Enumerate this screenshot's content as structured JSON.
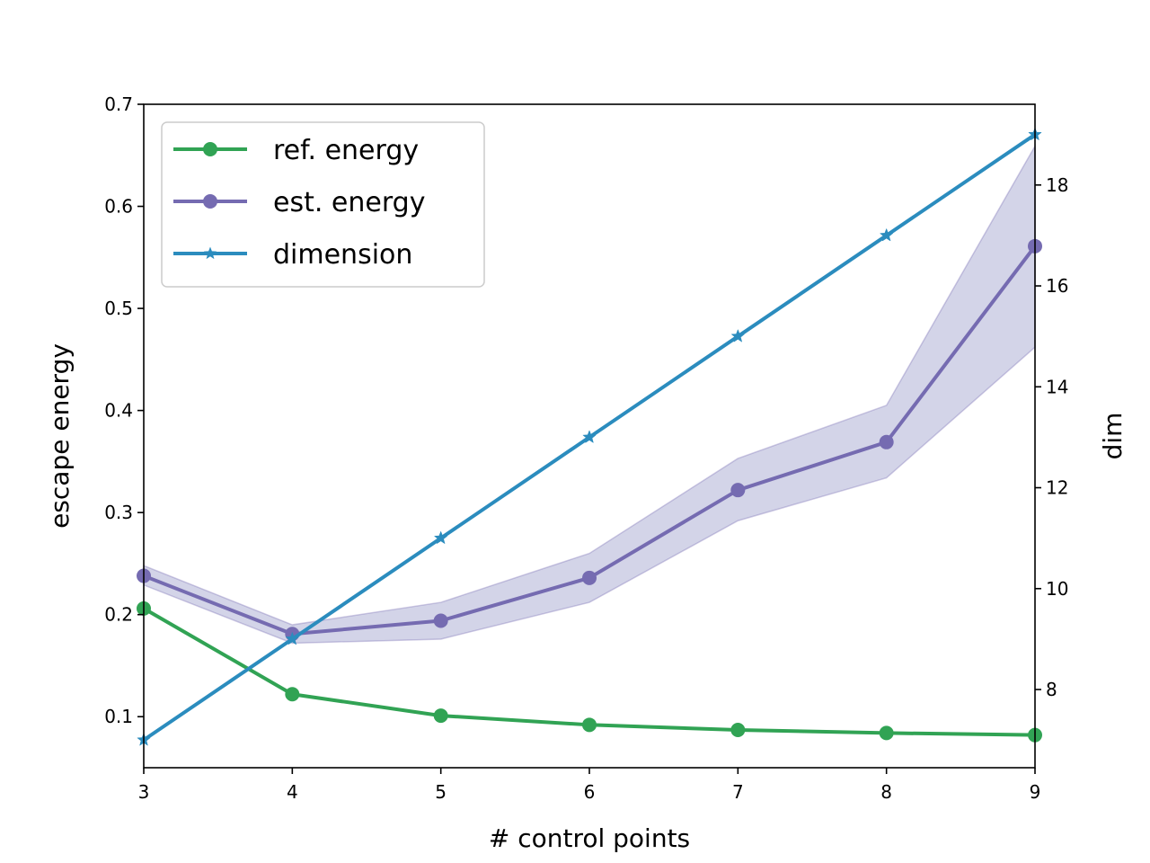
{
  "chart_data": {
    "type": "line",
    "xlabel": "# control points",
    "ylabel": "escape energy",
    "y2label": "dim",
    "xlim": [
      3,
      9
    ],
    "ylim": [
      0.05,
      0.7
    ],
    "y2lim": [
      6.45,
      19.6
    ],
    "xticks": [
      3,
      4,
      5,
      6,
      7,
      8,
      9
    ],
    "yticks": [
      0.1,
      0.2,
      0.3,
      0.4,
      0.5,
      0.6,
      0.7
    ],
    "y2ticks": [
      8,
      10,
      12,
      14,
      16,
      18
    ],
    "grid": false,
    "legend_position": "top-left",
    "x": [
      3,
      4,
      5,
      6,
      7,
      8,
      9
    ],
    "series": [
      {
        "name": "ref. energy",
        "axis": "left",
        "marker": "circle",
        "color": "#31a354",
        "values": [
          0.206,
          0.122,
          0.101,
          0.092,
          0.087,
          0.084,
          0.082
        ]
      },
      {
        "name": "est. energy",
        "axis": "left",
        "marker": "circle",
        "color": "#756bb1",
        "values": [
          0.238,
          0.181,
          0.194,
          0.236,
          0.322,
          0.369,
          0.561
        ],
        "band_lower": [
          0.229,
          0.172,
          0.176,
          0.212,
          0.292,
          0.334,
          0.462
        ],
        "band_upper": [
          0.248,
          0.19,
          0.212,
          0.26,
          0.353,
          0.405,
          0.659
        ],
        "band_color": "#bcbddc"
      },
      {
        "name": "dimension",
        "axis": "right",
        "marker": "star",
        "color": "#2b8cbe",
        "values": [
          7,
          9,
          11,
          13,
          15,
          17,
          19
        ]
      }
    ]
  }
}
